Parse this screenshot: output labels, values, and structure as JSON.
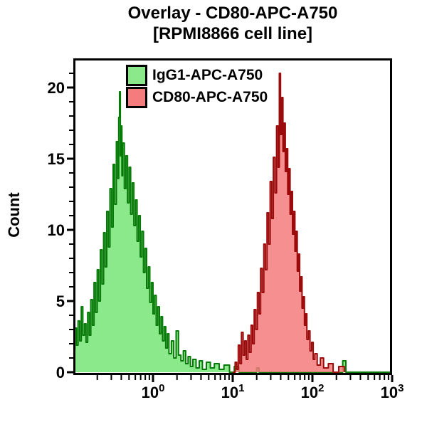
{
  "title": {
    "line1": "Overlay - CD80-APC-A750",
    "line2": "[RPMI8866 cell line]"
  },
  "axes": {
    "y_label": "Count",
    "y_ticks": [
      0,
      5,
      10,
      15,
      20
    ],
    "y_minor_step": 1,
    "y_minor_max": 21,
    "y_max": 22,
    "x_ticks": {
      "base": "10",
      "exponents": [
        0,
        1,
        2,
        3
      ]
    },
    "x_log_min": -1,
    "x_log_max": 3
  },
  "legend": [
    {
      "label": "IgG1-APC-A750",
      "fill": "#8BE88B",
      "edge": "#067A06"
    },
    {
      "label": "CD80-APC-A750",
      "fill": "#F47C7C",
      "edge": "#9C0B0B"
    }
  ],
  "chart_data": {
    "type": "area",
    "subtype": "flow-cytometry-histogram-overlay",
    "x_scale": "log",
    "x_unit": "log10",
    "x_range": [
      0.1,
      1000
    ],
    "y_range": [
      0,
      22
    ],
    "grid": false,
    "legend_position": "top-left-inside",
    "series": [
      {
        "name": "IgG1-APC-A750",
        "fill": "#8BE88B",
        "fill_opacity": 1.0,
        "edge": "#067A06",
        "peak_x": 0.36,
        "peak_count": 19.7,
        "points": [
          [
            -1.0,
            1.6
          ],
          [
            -0.98,
            3.1
          ],
          [
            -0.96,
            1.9
          ],
          [
            -0.94,
            3.6
          ],
          [
            -0.92,
            2.2
          ],
          [
            -0.9,
            4.6
          ],
          [
            -0.88,
            2.6
          ],
          [
            -0.86,
            3.4
          ],
          [
            -0.84,
            2.1
          ],
          [
            -0.82,
            4.2
          ],
          [
            -0.8,
            2.6
          ],
          [
            -0.78,
            5.1
          ],
          [
            -0.76,
            3.3
          ],
          [
            -0.74,
            6.3
          ],
          [
            -0.72,
            4.2
          ],
          [
            -0.7,
            7.2
          ],
          [
            -0.68,
            5.0
          ],
          [
            -0.66,
            8.6
          ],
          [
            -0.64,
            6.2
          ],
          [
            -0.62,
            9.8
          ],
          [
            -0.6,
            7.4
          ],
          [
            -0.58,
            11.3
          ],
          [
            -0.56,
            8.8
          ],
          [
            -0.54,
            12.9
          ],
          [
            -0.52,
            10.2
          ],
          [
            -0.5,
            14.6
          ],
          [
            -0.48,
            11.8
          ],
          [
            -0.46,
            16.2
          ],
          [
            -0.44,
            13.6
          ],
          [
            -0.43,
            17.9
          ],
          [
            -0.42,
            19.7
          ],
          [
            -0.41,
            15.2
          ],
          [
            -0.4,
            17.3
          ],
          [
            -0.39,
            13.8
          ],
          [
            -0.38,
            16.1
          ],
          [
            -0.36,
            12.9
          ],
          [
            -0.34,
            15.2
          ],
          [
            -0.32,
            11.9
          ],
          [
            -0.3,
            14.4
          ],
          [
            -0.28,
            11.1
          ],
          [
            -0.26,
            13.3
          ],
          [
            -0.24,
            10.3
          ],
          [
            -0.22,
            12.1
          ],
          [
            -0.2,
            9.2
          ],
          [
            -0.18,
            11.0
          ],
          [
            -0.16,
            8.1
          ],
          [
            -0.14,
            9.9
          ],
          [
            -0.12,
            7.0
          ],
          [
            -0.1,
            8.7
          ],
          [
            -0.08,
            5.9
          ],
          [
            -0.06,
            7.4
          ],
          [
            -0.04,
            4.9
          ],
          [
            -0.02,
            6.3
          ],
          [
            0.0,
            4.1
          ],
          [
            0.02,
            5.4
          ],
          [
            0.04,
            3.3
          ],
          [
            0.06,
            4.6
          ],
          [
            0.08,
            2.7
          ],
          [
            0.1,
            3.9
          ],
          [
            0.12,
            2.2
          ],
          [
            0.14,
            3.2
          ],
          [
            0.16,
            1.7
          ],
          [
            0.18,
            2.7
          ],
          [
            0.2,
            1.3
          ],
          [
            0.23,
            2.2
          ],
          [
            0.26,
            1.0
          ],
          [
            0.29,
            2.9
          ],
          [
            0.32,
            1.2
          ],
          [
            0.35,
            0.8
          ],
          [
            0.38,
            1.5
          ],
          [
            0.41,
            0.6
          ],
          [
            0.44,
            1.1
          ],
          [
            0.47,
            0.4
          ],
          [
            0.5,
            0.9
          ],
          [
            0.54,
            0.3
          ],
          [
            0.58,
            0.8
          ],
          [
            0.62,
            0.2
          ],
          [
            0.67,
            0.7
          ],
          [
            0.72,
            0.3
          ],
          [
            0.77,
            0.6
          ],
          [
            0.83,
            0.2
          ],
          [
            0.89,
            0.5
          ],
          [
            0.96,
            0.0
          ],
          [
            1.02,
            0.4
          ],
          [
            1.08,
            0.0
          ],
          [
            1.3,
            0.3
          ],
          [
            1.33,
            0.0
          ],
          [
            2.38,
            0.8
          ],
          [
            2.42,
            0.0
          ],
          [
            3.0,
            0.0
          ]
        ]
      },
      {
        "name": "CD80-APC-A750",
        "fill": "#F47C7C",
        "fill_opacity": 0.85,
        "edge": "#9C0B0B",
        "peak_x": 38.5,
        "peak_count": 21.0,
        "points": [
          [
            1.0,
            0.0
          ],
          [
            1.03,
            0.7
          ],
          [
            1.05,
            0.2
          ],
          [
            1.07,
            1.9
          ],
          [
            1.09,
            0.6
          ],
          [
            1.11,
            2.8
          ],
          [
            1.13,
            1.2
          ],
          [
            1.15,
            2.2
          ],
          [
            1.17,
            0.9
          ],
          [
            1.19,
            2.6
          ],
          [
            1.21,
            1.4
          ],
          [
            1.23,
            3.3
          ],
          [
            1.25,
            2.0
          ],
          [
            1.27,
            4.4
          ],
          [
            1.29,
            3.0
          ],
          [
            1.31,
            5.6
          ],
          [
            1.33,
            4.1
          ],
          [
            1.35,
            7.3
          ],
          [
            1.37,
            5.6
          ],
          [
            1.39,
            9.0
          ],
          [
            1.41,
            7.2
          ],
          [
            1.43,
            11.2
          ],
          [
            1.45,
            9.0
          ],
          [
            1.47,
            13.4
          ],
          [
            1.49,
            10.8
          ],
          [
            1.51,
            15.1
          ],
          [
            1.53,
            12.6
          ],
          [
            1.55,
            17.3
          ],
          [
            1.57,
            14.4
          ],
          [
            1.585,
            21.0
          ],
          [
            1.6,
            16.7
          ],
          [
            1.615,
            19.3
          ],
          [
            1.63,
            15.5
          ],
          [
            1.645,
            17.5
          ],
          [
            1.66,
            14.1
          ],
          [
            1.675,
            15.7
          ],
          [
            1.69,
            12.5
          ],
          [
            1.705,
            14.3
          ],
          [
            1.72,
            11.1
          ],
          [
            1.735,
            12.7
          ],
          [
            1.75,
            9.7
          ],
          [
            1.765,
            11.3
          ],
          [
            1.78,
            8.5
          ],
          [
            1.795,
            9.9
          ],
          [
            1.81,
            7.1
          ],
          [
            1.825,
            8.3
          ],
          [
            1.84,
            5.7
          ],
          [
            1.855,
            6.7
          ],
          [
            1.87,
            4.5
          ],
          [
            1.885,
            5.3
          ],
          [
            1.9,
            3.3
          ],
          [
            1.915,
            4.1
          ],
          [
            1.93,
            2.3
          ],
          [
            1.95,
            2.9
          ],
          [
            1.97,
            1.5
          ],
          [
            1.99,
            2.1
          ],
          [
            2.01,
            0.9
          ],
          [
            2.03,
            1.3
          ],
          [
            2.06,
            0.5
          ],
          [
            2.1,
            1.0
          ],
          [
            2.14,
            0.3
          ],
          [
            2.2,
            0.6
          ],
          [
            2.26,
            0.0
          ],
          [
            2.33,
            0.4
          ],
          [
            2.4,
            0.0
          ]
        ]
      }
    ]
  }
}
